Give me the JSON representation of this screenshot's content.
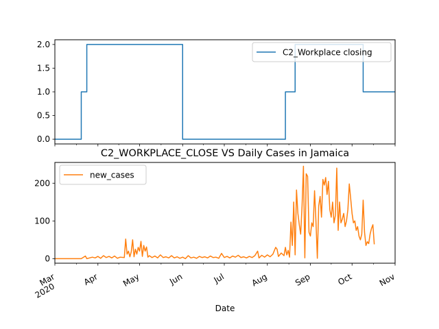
{
  "chart_data": [
    {
      "type": "line",
      "title": "",
      "xlabel": "",
      "ylabel": "",
      "ylim": [
        -0.1,
        2.1
      ],
      "yticks": [
        "0.0",
        "0.5",
        "1.0",
        "1.5",
        "2.0"
      ],
      "ytick_values": [
        0,
        0.5,
        1,
        1.5,
        2
      ],
      "xlim": [
        "2020-03-01",
        "2020-11-01"
      ],
      "legend_position": "top-right",
      "series": [
        {
          "name": "C2_Workplace closing",
          "color": "#1f77b4",
          "points": [
            [
              "2020-03-01",
              0
            ],
            [
              "2020-03-20",
              0
            ],
            [
              "2020-03-20",
              1
            ],
            [
              "2020-03-24",
              1
            ],
            [
              "2020-03-24",
              2
            ],
            [
              "2020-06-01",
              2
            ],
            [
              "2020-06-01",
              0
            ],
            [
              "2020-08-14",
              0
            ],
            [
              "2020-08-14",
              1
            ],
            [
              "2020-08-21",
              1
            ],
            [
              "2020-08-21",
              2
            ],
            [
              "2020-10-09",
              2
            ],
            [
              "2020-10-09",
              1
            ],
            [
              "2020-11-01",
              1
            ]
          ]
        }
      ]
    },
    {
      "type": "line",
      "title": "C2_WORKPLACE_CLOSE VS Daily Cases in Jamaica",
      "xlabel": "Date",
      "ylabel": "",
      "ylim": [
        -12,
        255
      ],
      "yticks": [
        "0",
        "100",
        "200"
      ],
      "ytick_values": [
        0,
        100,
        200
      ],
      "xlim": [
        "2020-03-01",
        "2020-11-01"
      ],
      "xticks": [
        {
          "date": "2020-03-01",
          "label": "Mar",
          "sublabel": "2020"
        },
        {
          "date": "2020-04-01",
          "label": "Apr"
        },
        {
          "date": "2020-05-01",
          "label": "May"
        },
        {
          "date": "2020-06-01",
          "label": "Jun"
        },
        {
          "date": "2020-07-01",
          "label": "Jul"
        },
        {
          "date": "2020-08-01",
          "label": "Aug"
        },
        {
          "date": "2020-09-01",
          "label": "Sep"
        },
        {
          "date": "2020-10-01",
          "label": "Oct"
        },
        {
          "date": "2020-11-01",
          "label": "Nov"
        }
      ],
      "legend_position": "top-left",
      "series": [
        {
          "name": "new_cases",
          "color": "#ff7f0e",
          "points": [
            [
              "2020-03-01",
              0
            ],
            [
              "2020-03-10",
              0
            ],
            [
              "2020-03-20",
              0
            ],
            [
              "2020-03-23",
              7
            ],
            [
              "2020-03-24",
              0
            ],
            [
              "2020-03-28",
              4
            ],
            [
              "2020-03-30",
              2
            ],
            [
              "2020-04-01",
              6
            ],
            [
              "2020-04-03",
              1
            ],
            [
              "2020-04-05",
              8
            ],
            [
              "2020-04-07",
              3
            ],
            [
              "2020-04-09",
              6
            ],
            [
              "2020-04-11",
              2
            ],
            [
              "2020-04-13",
              7
            ],
            [
              "2020-04-15",
              1
            ],
            [
              "2020-04-17",
              4
            ],
            [
              "2020-04-20",
              3
            ],
            [
              "2020-04-21",
              52
            ],
            [
              "2020-04-22",
              12
            ],
            [
              "2020-04-23",
              20
            ],
            [
              "2020-04-24",
              5
            ],
            [
              "2020-04-25",
              18
            ],
            [
              "2020-04-26",
              50
            ],
            [
              "2020-04-27",
              5
            ],
            [
              "2020-04-28",
              25
            ],
            [
              "2020-04-29",
              12
            ],
            [
              "2020-04-30",
              30
            ],
            [
              "2020-05-01",
              20
            ],
            [
              "2020-05-02",
              46
            ],
            [
              "2020-05-03",
              6
            ],
            [
              "2020-05-04",
              35
            ],
            [
              "2020-05-05",
              20
            ],
            [
              "2020-05-06",
              31
            ],
            [
              "2020-05-07",
              4
            ],
            [
              "2020-05-08",
              8
            ],
            [
              "2020-05-10",
              3
            ],
            [
              "2020-05-12",
              7
            ],
            [
              "2020-05-14",
              2
            ],
            [
              "2020-05-16",
              10
            ],
            [
              "2020-05-18",
              3
            ],
            [
              "2020-05-20",
              5
            ],
            [
              "2020-05-22",
              2
            ],
            [
              "2020-05-24",
              8
            ],
            [
              "2020-05-26",
              2
            ],
            [
              "2020-05-28",
              5
            ],
            [
              "2020-05-30",
              1
            ],
            [
              "2020-06-01",
              4
            ],
            [
              "2020-06-03",
              0
            ],
            [
              "2020-06-05",
              8
            ],
            [
              "2020-06-07",
              2
            ],
            [
              "2020-06-09",
              4
            ],
            [
              "2020-06-11",
              1
            ],
            [
              "2020-06-13",
              6
            ],
            [
              "2020-06-15",
              3
            ],
            [
              "2020-06-17",
              5
            ],
            [
              "2020-06-19",
              2
            ],
            [
              "2020-06-21",
              7
            ],
            [
              "2020-06-23",
              3
            ],
            [
              "2020-06-25",
              4
            ],
            [
              "2020-06-27",
              1
            ],
            [
              "2020-06-29",
              14
            ],
            [
              "2020-07-01",
              3
            ],
            [
              "2020-07-03",
              6
            ],
            [
              "2020-07-05",
              2
            ],
            [
              "2020-07-07",
              7
            ],
            [
              "2020-07-09",
              4
            ],
            [
              "2020-07-11",
              9
            ],
            [
              "2020-07-13",
              3
            ],
            [
              "2020-07-15",
              5
            ],
            [
              "2020-07-17",
              2
            ],
            [
              "2020-07-19",
              6
            ],
            [
              "2020-07-21",
              3
            ],
            [
              "2020-07-23",
              8
            ],
            [
              "2020-07-25",
              20
            ],
            [
              "2020-07-26",
              2
            ],
            [
              "2020-07-28",
              9
            ],
            [
              "2020-07-30",
              4
            ],
            [
              "2020-08-01",
              10
            ],
            [
              "2020-08-03",
              5
            ],
            [
              "2020-08-05",
              12
            ],
            [
              "2020-08-07",
              30
            ],
            [
              "2020-08-08",
              25
            ],
            [
              "2020-08-09",
              6
            ],
            [
              "2020-08-11",
              15
            ],
            [
              "2020-08-13",
              8
            ],
            [
              "2020-08-14",
              30
            ],
            [
              "2020-08-15",
              10
            ],
            [
              "2020-08-16",
              22
            ],
            [
              "2020-08-17",
              4
            ],
            [
              "2020-08-18",
              97
            ],
            [
              "2020-08-19",
              35
            ],
            [
              "2020-08-20",
              150
            ],
            [
              "2020-08-21",
              10
            ],
            [
              "2020-08-22",
              182
            ],
            [
              "2020-08-23",
              120
            ],
            [
              "2020-08-24",
              90
            ],
            [
              "2020-08-25",
              65
            ],
            [
              "2020-08-26",
              140
            ],
            [
              "2020-08-27",
              245
            ],
            [
              "2020-08-28",
              2
            ],
            [
              "2020-08-29",
              225
            ],
            [
              "2020-08-30",
              218
            ],
            [
              "2020-08-31",
              70
            ],
            [
              "2020-09-01",
              60
            ],
            [
              "2020-09-02",
              95
            ],
            [
              "2020-09-03",
              85
            ],
            [
              "2020-09-04",
              180
            ],
            [
              "2020-09-05",
              100
            ],
            [
              "2020-09-06",
              1
            ],
            [
              "2020-09-07",
              140
            ],
            [
              "2020-09-08",
              165
            ],
            [
              "2020-09-09",
              110
            ],
            [
              "2020-09-10",
              210
            ],
            [
              "2020-09-11",
              195
            ],
            [
              "2020-09-12",
              215
            ],
            [
              "2020-09-13",
              170
            ],
            [
              "2020-09-14",
              205
            ],
            [
              "2020-09-15",
              130
            ],
            [
              "2020-09-16",
              110
            ],
            [
              "2020-09-17",
              150
            ],
            [
              "2020-09-18",
              95
            ],
            [
              "2020-09-19",
              115
            ],
            [
              "2020-09-20",
              240
            ],
            [
              "2020-09-21",
              75
            ],
            [
              "2020-09-22",
              150
            ],
            [
              "2020-09-23",
              95
            ],
            [
              "2020-09-24",
              105
            ],
            [
              "2020-09-25",
              120
            ],
            [
              "2020-09-26",
              85
            ],
            [
              "2020-09-27",
              100
            ],
            [
              "2020-09-28",
              130
            ],
            [
              "2020-09-29",
              198
            ],
            [
              "2020-09-30",
              160
            ],
            [
              "2020-10-01",
              120
            ],
            [
              "2020-10-02",
              95
            ],
            [
              "2020-10-03",
              100
            ],
            [
              "2020-10-04",
              75
            ],
            [
              "2020-10-05",
              85
            ],
            [
              "2020-10-06",
              60
            ],
            [
              "2020-10-07",
              50
            ],
            [
              "2020-10-08",
              65
            ],
            [
              "2020-10-09",
              155
            ],
            [
              "2020-10-10",
              70
            ],
            [
              "2020-10-11",
              35
            ],
            [
              "2020-10-12",
              45
            ],
            [
              "2020-10-13",
              40
            ],
            [
              "2020-10-14",
              65
            ],
            [
              "2020-10-15",
              80
            ],
            [
              "2020-10-16",
              90
            ],
            [
              "2020-10-17",
              38
            ]
          ]
        }
      ]
    }
  ]
}
